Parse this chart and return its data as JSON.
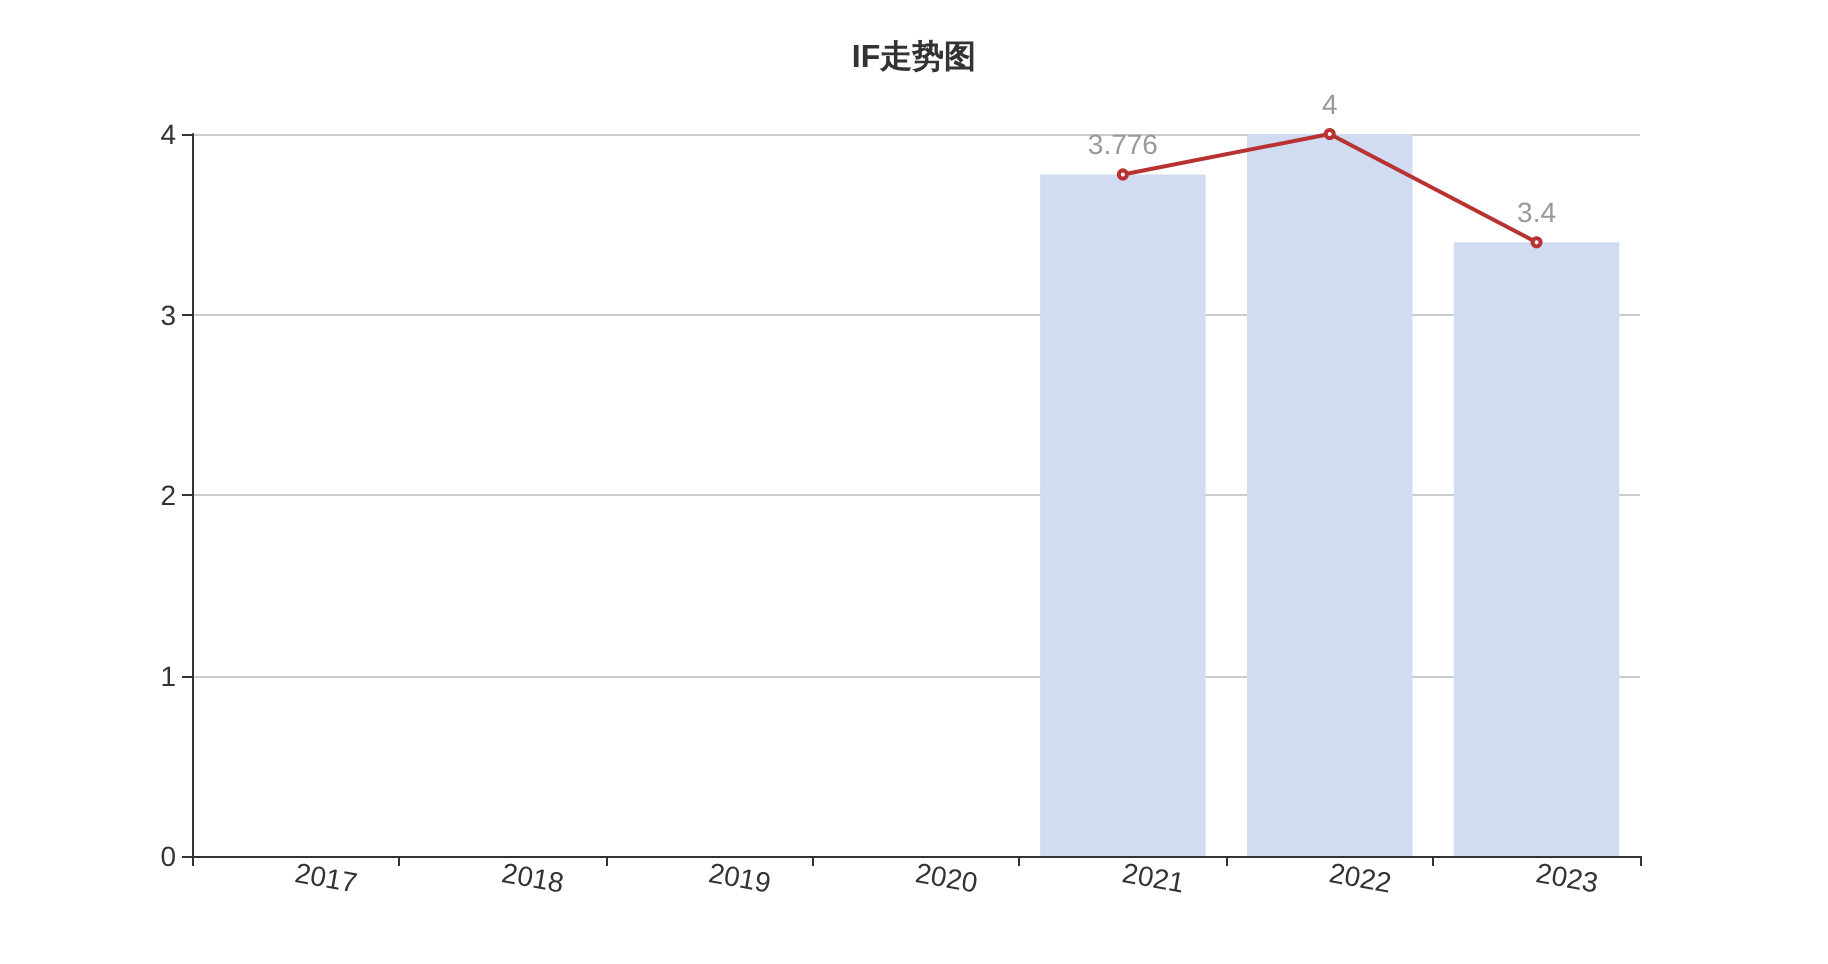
{
  "chart_data": {
    "type": "bar",
    "title": "IF走势图",
    "categories": [
      "2017",
      "2018",
      "2019",
      "2020",
      "2021",
      "2022",
      "2023"
    ],
    "series": [
      {
        "color": "#d1dcf2",
        "values": [
          null,
          null,
          null,
          null,
          3.776,
          4,
          3.4
        ]
      },
      {
        "type": "line",
        "color": "#b83232",
        "values": [
          null,
          null,
          null,
          null,
          3.776,
          4,
          3.4
        ],
        "value_labels": [
          null,
          null,
          null,
          null,
          "3.776",
          "4",
          "3.4"
        ]
      }
    ],
    "ylim": [
      0,
      4
    ],
    "yticks": [
      0,
      1,
      2,
      3,
      4
    ],
    "grid": "y",
    "marker": "circle"
  }
}
